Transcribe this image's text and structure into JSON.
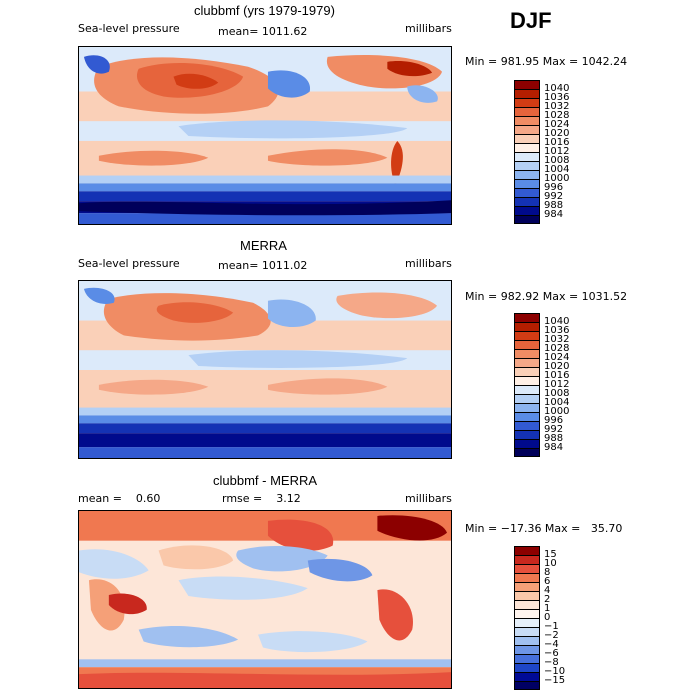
{
  "season": "DJF",
  "panels": [
    {
      "title": "clubbmf (yrs 1979-1979)",
      "left_label": "Sea-level pressure",
      "center_label": "mean= 1011.62",
      "right_label": "millibars",
      "minmax": "Min = 981.95 Max = 1042.24"
    },
    {
      "title": "MERRA",
      "left_label": "Sea-level pressure",
      "center_label": "mean= 1011.02",
      "right_label": "millibars",
      "minmax": "Min = 982.92 Max = 1031.52"
    },
    {
      "title": "clubbmf - MERRA",
      "left_label": "mean =    0.60",
      "center_label": "rmse =    3.12",
      "right_label": "millibars",
      "minmax": "Min = −17.36 Max =   35.70"
    }
  ],
  "chart_data": [
    {
      "type": "heatmap",
      "title": "clubbmf (yrs 1979-1979)",
      "variable": "Sea-level pressure",
      "units": "millibars",
      "mean": 1011.62,
      "min": 981.95,
      "max": 1042.24,
      "colorbar_levels": [
        "1040",
        "1036",
        "1032",
        "1028",
        "1024",
        "1020",
        "1016",
        "1012",
        "1008",
        "1004",
        "1000",
        "996",
        "992",
        "988",
        "984"
      ],
      "colorbar_colors": [
        "#8c0000",
        "#b41e00",
        "#d23c14",
        "#e6643c",
        "#f08c64",
        "#f5a888",
        "#fad0b8",
        "#fff0e6",
        "#dceafa",
        "#b4d0f5",
        "#8cb4f0",
        "#5a8ce6",
        "#325ad2",
        "#1432b4",
        "#000a8c",
        "#00005a"
      ]
    },
    {
      "type": "heatmap",
      "title": "MERRA",
      "variable": "Sea-level pressure",
      "units": "millibars",
      "mean": 1011.02,
      "min": 982.92,
      "max": 1031.52,
      "colorbar_levels": [
        "1040",
        "1036",
        "1032",
        "1028",
        "1024",
        "1020",
        "1016",
        "1012",
        "1008",
        "1004",
        "1000",
        "996",
        "992",
        "988",
        "984"
      ],
      "colorbar_colors": [
        "#8c0000",
        "#b41e00",
        "#d23c14",
        "#e6643c",
        "#f08c64",
        "#f5a888",
        "#fad0b8",
        "#fff0e6",
        "#dceafa",
        "#b4d0f5",
        "#8cb4f0",
        "#5a8ce6",
        "#325ad2",
        "#1432b4",
        "#000a8c",
        "#00005a"
      ]
    },
    {
      "type": "heatmap",
      "title": "clubbmf - MERRA",
      "units": "millibars",
      "mean": 0.6,
      "rmse": 3.12,
      "min": -17.36,
      "max": 35.7,
      "colorbar_levels": [
        "15",
        "10",
        "8",
        "6",
        "4",
        "2",
        "1",
        "0",
        "−1",
        "−2",
        "−4",
        "−6",
        "−8",
        "−10",
        "−15"
      ],
      "colorbar_colors": [
        "#8c0000",
        "#c8281e",
        "#e6503c",
        "#f07850",
        "#f5a078",
        "#fac8aa",
        "#fde6d8",
        "#fff5ef",
        "#e6f0fa",
        "#c8dcf5",
        "#a0c0f0",
        "#6e96e6",
        "#4670dc",
        "#1e46c8",
        "#000a96",
        "#000064"
      ]
    }
  ]
}
